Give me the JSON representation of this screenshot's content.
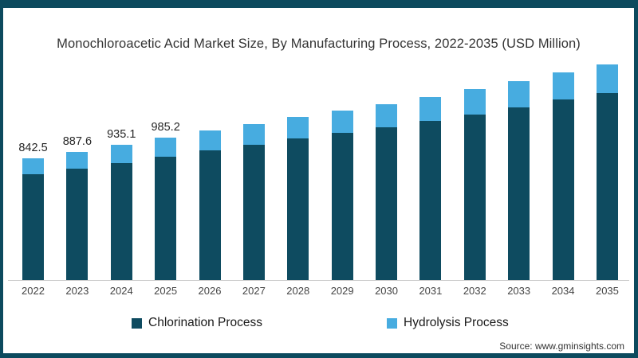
{
  "colors": {
    "frame_border": "#0c4a5e",
    "chlorination": "#0e4b60",
    "hydrolysis": "#47ace0",
    "axis_line": "#cccccc",
    "background": "#ffffff"
  },
  "chart": {
    "source": "Source: www.gminsights.com"
  },
  "chart_data": {
    "type": "bar",
    "stacked": true,
    "title": "Monochloroacetic Acid Market Size, By Manufacturing Process, 2022-2035 (USD Million)",
    "xlabel": "",
    "ylabel": "",
    "unit": "USD Million",
    "categories": [
      "2022",
      "2023",
      "2024",
      "2025",
      "2026",
      "2027",
      "2028",
      "2029",
      "2030",
      "2031",
      "2032",
      "2033",
      "2034",
      "2035"
    ],
    "series": [
      {
        "name": "Chlorination Process",
        "color": "#0e4b60",
        "values": [
          731.3,
          770.4,
          811.7,
          855.2,
          900.3,
          936.7,
          979.9,
          1018.1,
          1056.3,
          1099.3,
          1147.1,
          1194.9,
          1247.5,
          1295.3
        ]
      },
      {
        "name": "Hydrolysis Process",
        "color": "#47ace0",
        "values": [
          111.2,
          117.2,
          123.4,
          130.0,
          136.9,
          142.4,
          149.0,
          154.8,
          160.6,
          167.2,
          174.5,
          181.7,
          189.7,
          197.0
        ]
      }
    ],
    "totals": [
      842.5,
      887.6,
      935.1,
      985.2,
      1037.2,
      1079.1,
      1128.9,
      1172.9,
      1216.9,
      1266.5,
      1321.6,
      1376.6,
      1437.2,
      1492.3
    ],
    "data_labels": [
      "842.5",
      "887.6",
      "935.1",
      "985.2",
      "",
      "",
      "",
      "",
      "",
      "",
      "",
      "",
      "",
      ""
    ],
    "ylim": [
      0,
      1600
    ],
    "grid": false,
    "legend_position": "bottom"
  }
}
